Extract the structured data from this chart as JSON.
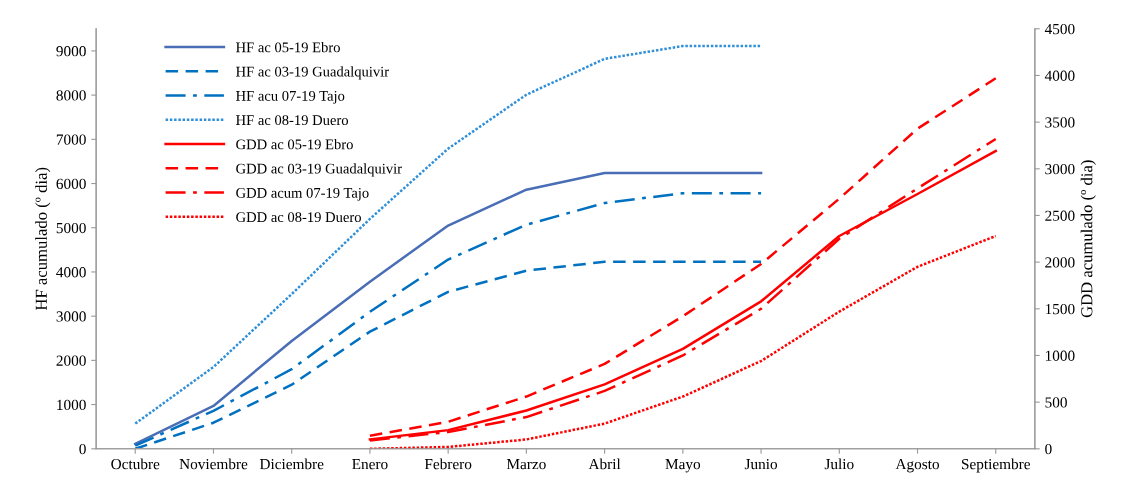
{
  "chart_data": {
    "type": "line",
    "ylabel": "HF acumulado (º dia)",
    "y2label": "GDD acumulado (º dia)",
    "categories": [
      "Octubre",
      "Noviembre",
      "Diciembre",
      "Enero",
      "Febrero",
      "Marzo",
      "Abril",
      "Mayo",
      "Junio",
      "Julio",
      "Agosto",
      "Septiembre"
    ],
    "ylim": [
      0,
      9500
    ],
    "yticks": [
      0,
      1000,
      2000,
      3000,
      4000,
      5000,
      6000,
      7000,
      8000,
      9000
    ],
    "y2lim": [
      0,
      4500
    ],
    "y2ticks": [
      0,
      500,
      1000,
      1500,
      2000,
      2500,
      3000,
      3500,
      4000,
      4500
    ],
    "grid": false,
    "legend": "top left",
    "marker": "none",
    "series": [
      {
        "name": "HF ac 05-19 Ebro",
        "color": "#4a6eb5",
        "line_style": "solid",
        "values": [
          110,
          970,
          2440,
          3780,
          5050,
          5860,
          6240,
          6240,
          6240,
          null,
          null,
          null
        ]
      },
      {
        "name": "HF ac 03-19 Guadalquivir",
        "color": "#0070c0",
        "line_style": "dashed",
        "values": [
          0,
          590,
          1450,
          2650,
          3550,
          4030,
          4230,
          4230,
          4230,
          null,
          null,
          null
        ]
      },
      {
        "name": "HF acu 07-19 Tajo",
        "color": "#0070c0",
        "line_style": "dashdot",
        "values": [
          70,
          860,
          1800,
          3100,
          4280,
          5070,
          5560,
          5780,
          5780,
          null,
          null,
          null
        ]
      },
      {
        "name": "HF ac 08-19 Duero",
        "color": "#2f8fd8",
        "line_style": "dotted",
        "values": [
          570,
          1850,
          3500,
          5200,
          6790,
          8010,
          8820,
          9110,
          9110,
          null,
          null,
          null
        ]
      },
      {
        "name": "GDD ac 05-19 Ebro",
        "color": "#ff0000",
        "line_style": "solid",
        "axis": "y2",
        "values": [
          null,
          null,
          null,
          100,
          200,
          410,
          690,
          1070,
          1580,
          2280,
          2730,
          3190
        ]
      },
      {
        "name": "GDD ac 03-19 Guadalquivir",
        "color": "#ff0000",
        "line_style": "dashed",
        "axis": "y2",
        "values": [
          null,
          null,
          null,
          140,
          290,
          560,
          910,
          1420,
          1980,
          2680,
          3430,
          3970
        ]
      },
      {
        "name": "GDD acum 07-19 Tajo",
        "color": "#ff0000",
        "line_style": "dashdot",
        "axis": "y2",
        "values": [
          null,
          null,
          null,
          90,
          180,
          340,
          620,
          1000,
          1500,
          2250,
          2790,
          3320
        ]
      },
      {
        "name": "GDD ac 08-19 Duero",
        "color": "#ff0000",
        "line_style": "dotted",
        "axis": "y2",
        "values": [
          null,
          null,
          null,
          0,
          20,
          100,
          270,
          560,
          940,
          1470,
          1950,
          2280
        ]
      }
    ]
  }
}
